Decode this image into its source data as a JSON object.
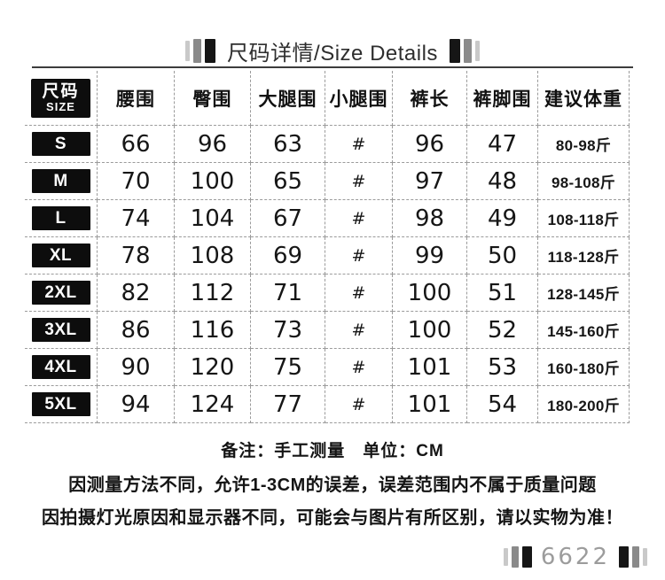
{
  "title": {
    "text": "尺码详情/Size Details"
  },
  "table": {
    "size_header_cn": "尺码",
    "size_header_en": "SIZE",
    "columns": [
      "腰围",
      "臀围",
      "大腿围",
      "小腿围",
      "裤长",
      "裤脚围",
      "建议体重"
    ],
    "unit": "CM",
    "rows": [
      {
        "size": "S",
        "values": [
          "66",
          "96",
          "63",
          "#",
          "96",
          "47",
          "80-98斤"
        ]
      },
      {
        "size": "M",
        "values": [
          "70",
          "100",
          "65",
          "#",
          "97",
          "48",
          "98-108斤"
        ]
      },
      {
        "size": "L",
        "values": [
          "74",
          "104",
          "67",
          "#",
          "98",
          "49",
          "108-118斤"
        ]
      },
      {
        "size": "XL",
        "values": [
          "78",
          "108",
          "69",
          "#",
          "99",
          "50",
          "118-128斤"
        ]
      },
      {
        "size": "2XL",
        "values": [
          "82",
          "112",
          "71",
          "#",
          "100",
          "51",
          "128-145斤"
        ]
      },
      {
        "size": "3XL",
        "values": [
          "86",
          "116",
          "73",
          "#",
          "100",
          "52",
          "145-160斤"
        ]
      },
      {
        "size": "4XL",
        "values": [
          "90",
          "120",
          "75",
          "#",
          "101",
          "53",
          "160-180斤"
        ]
      },
      {
        "size": "5XL",
        "values": [
          "94",
          "124",
          "77",
          "#",
          "101",
          "54",
          "180-200斤"
        ]
      }
    ]
  },
  "notes": {
    "remark": "备注：手工测量　单位：CM",
    "line1": "因测量方法不同，允许1-3CM的误差，误差范围内不属于质量问题",
    "line2": "因拍摄灯光原因和显示器不同，可能会与图片有所区别，请以实物为准！"
  },
  "footer": {
    "code": "6622"
  },
  "colors": {
    "bar_light": "#c9c9c9",
    "bar_mid": "#8a8a8a",
    "bar_dark": "#161616",
    "size_box_bg": "#0d0d0d",
    "grid_line": "#9b9b9b",
    "text": "#1c1c1c",
    "footer_code_text": "#9c9c9c"
  }
}
